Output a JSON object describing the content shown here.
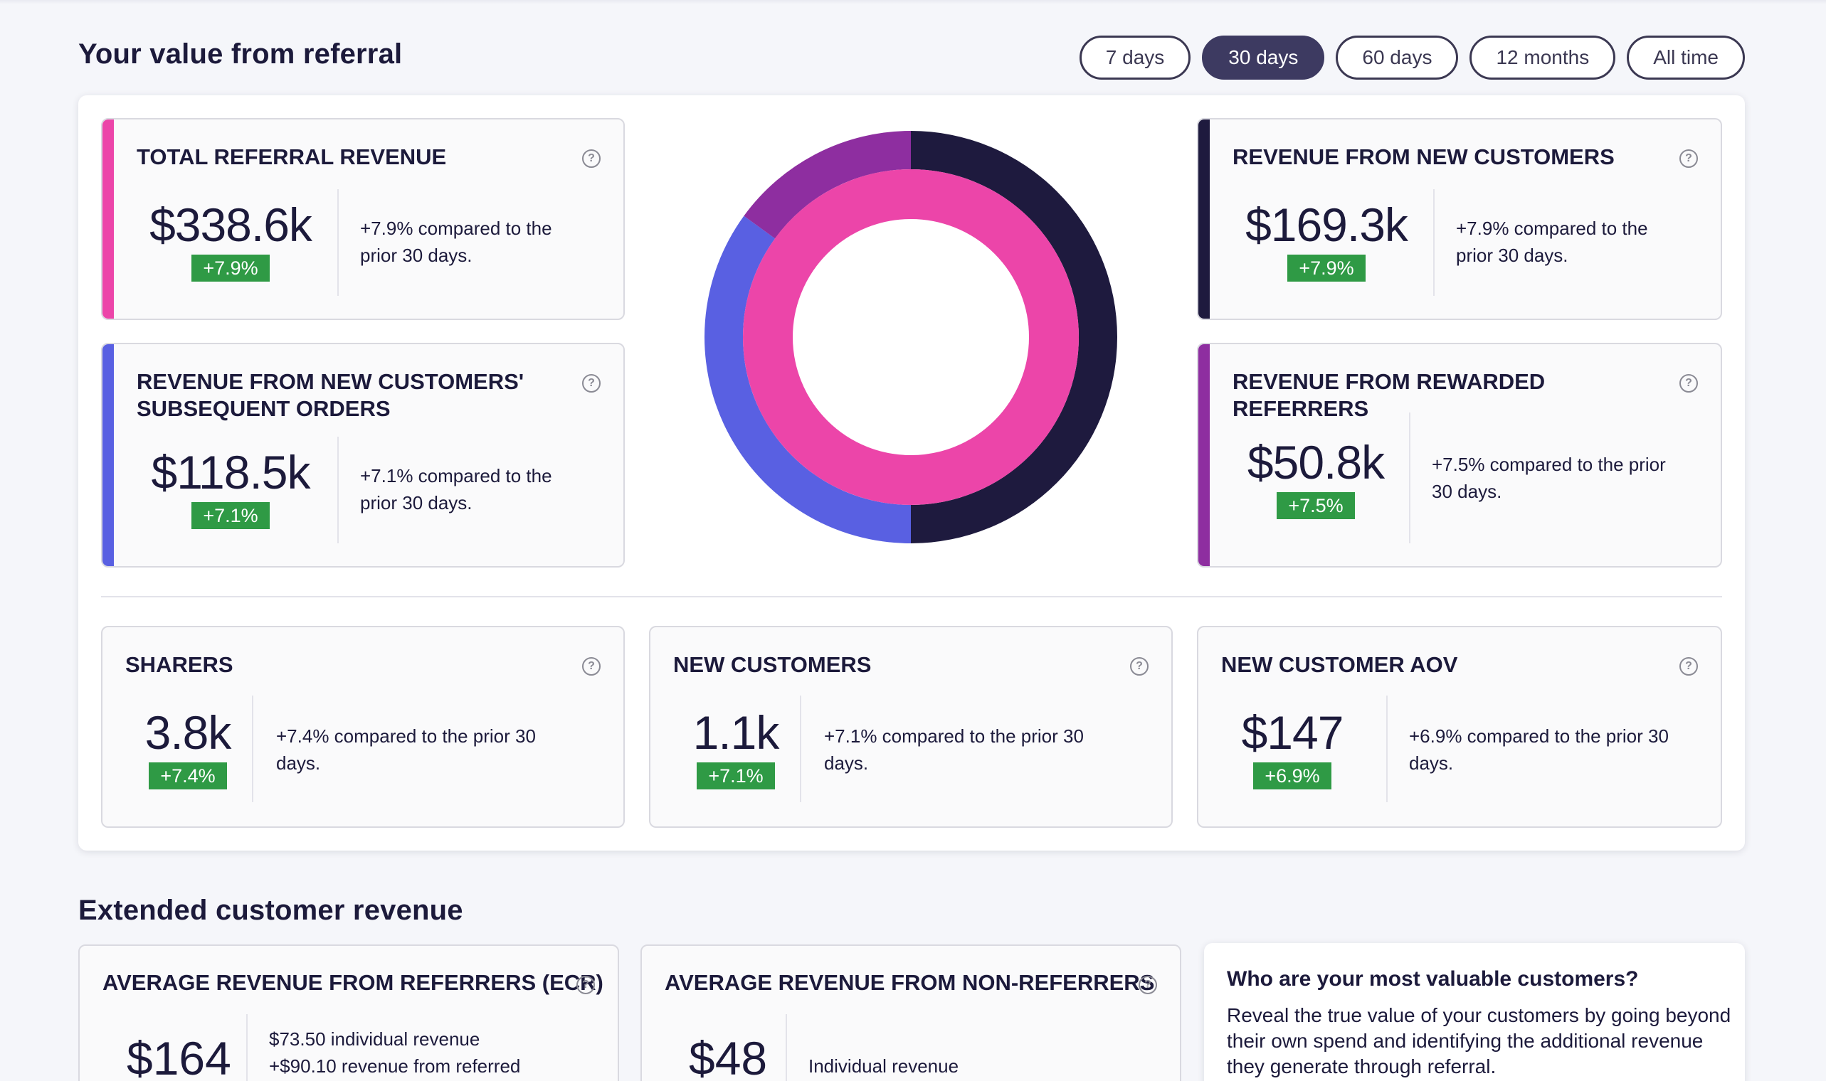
{
  "header": {
    "title": "Your value from referral",
    "filters": [
      {
        "label": "7 days",
        "active": false
      },
      {
        "label": "30 days",
        "active": true
      },
      {
        "label": "60 days",
        "active": false
      },
      {
        "label": "12 months",
        "active": false
      },
      {
        "label": "All time",
        "active": false
      }
    ]
  },
  "colors": {
    "total": "#ec45a9",
    "subsequent": "#5960e2",
    "new_customers": "#1e1a3e",
    "rewarded": "#8e2ea0",
    "badge_green": "#2f9a45"
  },
  "metrics": {
    "total_revenue": {
      "title": "TOTAL REFERRAL REVENUE",
      "value": "$338.6k",
      "badge": "+7.9%",
      "desc": "+7.9% compared to the prior 30 days."
    },
    "subsequent_orders": {
      "title": "REVENUE FROM NEW CUSTOMERS' SUBSEQUENT ORDERS",
      "value": "$118.5k",
      "badge": "+7.1%",
      "desc": "+7.1% compared to the prior 30 days."
    },
    "new_customers_revenue": {
      "title": "REVENUE FROM NEW CUSTOMERS",
      "value": "$169.3k",
      "badge": "+7.9%",
      "desc": "+7.9% compared to the prior 30 days."
    },
    "rewarded_referrers": {
      "title": "REVENUE FROM REWARDED REFERRERS",
      "value": "$50.8k",
      "badge": "+7.5%",
      "desc": "+7.5% compared to the prior 30 days."
    },
    "sharers": {
      "title": "SHARERS",
      "value": "3.8k",
      "badge": "+7.4%",
      "desc": "+7.4% compared to the prior 30 days."
    },
    "new_customers": {
      "title": "NEW CUSTOMERS",
      "value": "1.1k",
      "badge": "+7.1%",
      "desc": "+7.1% compared to the prior 30 days."
    },
    "new_customer_aov": {
      "title": "NEW CUSTOMER AOV",
      "value": "$147",
      "badge": "+6.9%",
      "desc": "+6.9% compared to the prior 30 days."
    }
  },
  "donut": {
    "outer": [
      {
        "label": "REVENUE FROM NEW CUSTOMERS",
        "value": 169.3,
        "color": "#1e1a3e"
      },
      {
        "label": "REVENUE FROM NEW CUSTOMERS' SUBSEQUENT ORDERS",
        "value": 118.5,
        "color": "#5960e2"
      },
      {
        "label": "REVENUE FROM REWARDED REFERRERS",
        "value": 50.8,
        "color": "#8e2ea0"
      }
    ],
    "inner": [
      {
        "label": "TOTAL REFERRAL REVENUE",
        "value": 338.6,
        "color": "#ec45a9"
      }
    ]
  },
  "extended": {
    "title": "Extended customer revenue",
    "ecr": {
      "title": "AVERAGE REVENUE FROM REFERRERS (ECR)",
      "value": "$164",
      "line1": "$73.50 individual revenue",
      "line2": "+$90.10 revenue from referred"
    },
    "non_referrers": {
      "title": "AVERAGE REVENUE FROM NON-REFERRERS",
      "value": "$48",
      "line1": "Individual revenue"
    },
    "info": {
      "title": "Who are your most valuable customers?",
      "text": "Reveal the true value of your customers by going beyond their own spend and identifying the additional revenue they generate through referral."
    }
  }
}
